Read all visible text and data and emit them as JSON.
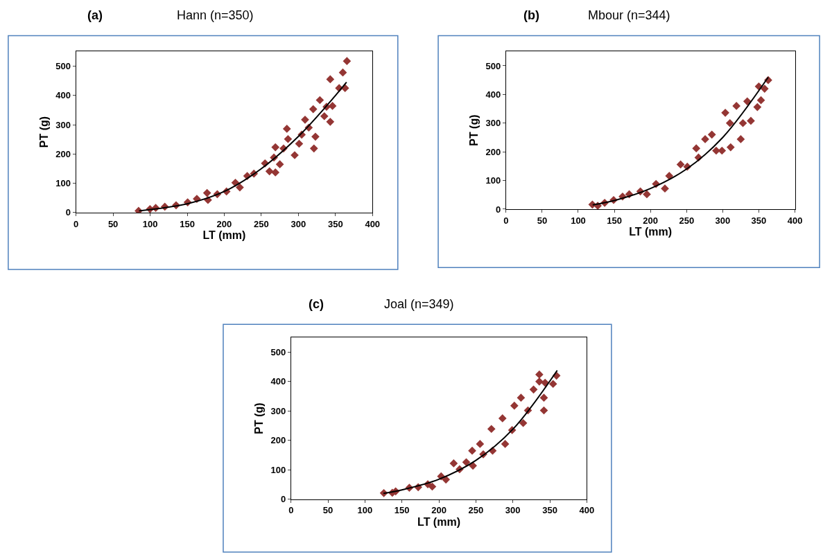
{
  "chart_data": [
    {
      "type": "scatter",
      "title": "(a)",
      "subtitle": "Hann (n=350)",
      "xlabel": "LT (mm)",
      "ylabel": "PT (g)",
      "xlim": [
        0,
        400
      ],
      "ylim": [
        0,
        550
      ],
      "xticks": [
        0,
        50,
        100,
        150,
        200,
        250,
        300,
        350,
        400
      ],
      "yticks": [
        0,
        100,
        200,
        300,
        400,
        500
      ],
      "grid": false,
      "series": [
        {
          "type": "scatter",
          "marker": "diamond",
          "color": "#943634",
          "x": [
            84.4,
            99.8,
            107.5,
            119.8,
            135,
            150.6,
            163,
            176.8,
            178,
            190.6,
            203,
            215,
            221,
            231,
            240,
            255,
            261,
            269,
            269,
            267,
            275,
            280,
            284.5,
            286,
            295,
            301,
            304.5,
            309,
            314,
            320,
            321,
            323,
            329,
            335,
            338,
            343,
            343,
            346,
            355,
            360,
            363,
            365.5
          ],
          "values": [
            6,
            12,
            16,
            20,
            25,
            35,
            47,
            67,
            43,
            63,
            72,
            102,
            86,
            125,
            133,
            168,
            141,
            223,
            137,
            188,
            165,
            219,
            286,
            251,
            196,
            235,
            266,
            317,
            290,
            353,
            219,
            259,
            384,
            329,
            361,
            310,
            455,
            364,
            425,
            478,
            425,
            517
          ]
        },
        {
          "type": "line",
          "marker": "none",
          "color": "#000000",
          "x": [
            85,
            150,
            200,
            250,
            300,
            340,
            365
          ],
          "values": [
            6,
            30,
            72,
            150,
            260,
            370,
            445
          ]
        }
      ]
    },
    {
      "type": "scatter",
      "title": "(b)",
      "subtitle": "Mbour (n=344)",
      "xlabel": "LT (mm)",
      "ylabel": "PT (g)",
      "xlim": [
        0,
        400
      ],
      "ylim": [
        0,
        550
      ],
      "xticks": [
        0,
        50,
        100,
        150,
        200,
        250,
        300,
        350,
        400
      ],
      "yticks": [
        0,
        100,
        200,
        300,
        400,
        500
      ],
      "grid": false,
      "series": [
        {
          "type": "scatter",
          "marker": "diamond",
          "color": "#943634",
          "x": [
            119.6,
            127,
            136.6,
            149,
            161.4,
            170.6,
            186,
            195,
            207.7,
            220,
            226,
            241.7,
            251,
            263.4,
            266.5,
            275.7,
            285,
            291,
            299,
            303.6,
            310,
            311,
            319,
            325,
            328,
            334,
            339,
            348,
            350,
            353,
            358,
            363
          ],
          "values": [
            16,
            12,
            22,
            32,
            44,
            52,
            62,
            52,
            88,
            72,
            116,
            156,
            148,
            212,
            180,
            244,
            260,
            204,
            204,
            336,
            300,
            216,
            360,
            244,
            300,
            376,
            308,
            356,
            428,
            380,
            420,
            450
          ]
        },
        {
          "type": "line",
          "marker": "none",
          "color": "#000000",
          "x": [
            120,
            150,
            200,
            250,
            300,
            363
          ],
          "values": [
            15,
            30,
            72,
            140,
            250,
            460
          ]
        }
      ]
    },
    {
      "type": "scatter",
      "title": "(c)",
      "subtitle": "Joal (n=349)",
      "xlabel": "LT (mm)",
      "ylabel": "PT (g)",
      "xlim": [
        0,
        400
      ],
      "ylim": [
        0,
        550
      ],
      "xticks": [
        0,
        50,
        100,
        150,
        200,
        250,
        300,
        350,
        400
      ],
      "yticks": [
        0,
        100,
        200,
        300,
        400,
        500
      ],
      "grid": false,
      "series": [
        {
          "type": "scatter",
          "marker": "diamond",
          "color": "#943634",
          "x": [
            125.5,
            137,
            141.5,
            160,
            172,
            185,
            191,
            203,
            209.5,
            220,
            228,
            237,
            245,
            246,
            255.6,
            260,
            271,
            272.6,
            286,
            289.6,
            299,
            302,
            311,
            314,
            320.4,
            328,
            335.8,
            335.8,
            342,
            342,
            343.6,
            354.4,
            359
          ],
          "values": [
            21,
            22,
            27,
            39,
            41,
            51,
            43,
            78,
            67,
            122,
            102,
            126,
            165,
            114,
            188,
            153,
            239,
            165,
            275,
            188,
            235,
            318,
            345,
            259,
            302,
            373,
            424,
            400,
            302,
            345,
            396,
            392,
            420
          ]
        },
        {
          "type": "line",
          "marker": "none",
          "color": "#000000",
          "x": [
            125,
            150,
            200,
            250,
            300,
            360
          ],
          "values": [
            20,
            32,
            68,
            132,
            238,
            438
          ]
        }
      ]
    }
  ]
}
